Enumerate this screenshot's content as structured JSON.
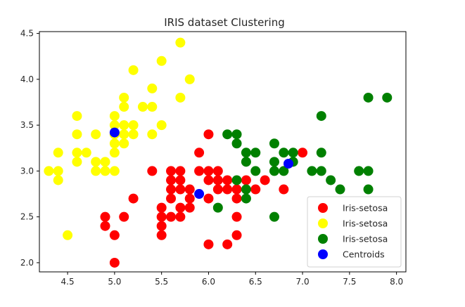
{
  "chart_data": {
    "type": "scatter",
    "title": "IRIS dataset Clustering",
    "xlabel": "",
    "ylabel": "",
    "xlim": [
      4.2,
      8.1
    ],
    "ylim": [
      1.9,
      4.52
    ],
    "xticks": [
      "4.5",
      "5.0",
      "5.5",
      "6.0",
      "6.5",
      "7.0",
      "7.5",
      "8.0"
    ],
    "yticks": [
      "2.0",
      "2.5",
      "3.0",
      "3.5",
      "4.0",
      "4.5"
    ],
    "grid": false,
    "legend_position": "bottom-right",
    "series": [
      {
        "name": "Iris-setosa",
        "color": "#ff0000",
        "points": [
          [
            5.0,
            2.0
          ],
          [
            4.9,
            2.5
          ],
          [
            4.9,
            2.4
          ],
          [
            5.0,
            2.3
          ],
          [
            5.1,
            2.5
          ],
          [
            5.2,
            2.7
          ],
          [
            5.4,
            3.0
          ],
          [
            5.5,
            2.6
          ],
          [
            5.5,
            2.5
          ],
          [
            5.5,
            2.4
          ],
          [
            5.5,
            2.3
          ],
          [
            5.6,
            3.0
          ],
          [
            5.6,
            2.9
          ],
          [
            5.6,
            2.8
          ],
          [
            5.6,
            2.7
          ],
          [
            5.6,
            2.5
          ],
          [
            5.7,
            3.0
          ],
          [
            5.7,
            2.9
          ],
          [
            5.7,
            2.8
          ],
          [
            5.7,
            2.6
          ],
          [
            5.7,
            2.5
          ],
          [
            5.8,
            2.8
          ],
          [
            5.8,
            2.7
          ],
          [
            5.8,
            2.6
          ],
          [
            5.9,
            3.2
          ],
          [
            5.9,
            3.0
          ],
          [
            6.0,
            3.4
          ],
          [
            6.0,
            3.0
          ],
          [
            6.0,
            2.9
          ],
          [
            6.0,
            2.7
          ],
          [
            6.0,
            2.2
          ],
          [
            6.1,
            3.0
          ],
          [
            6.1,
            2.9
          ],
          [
            6.1,
            2.8
          ],
          [
            6.2,
            2.9
          ],
          [
            6.2,
            2.8
          ],
          [
            6.2,
            2.2
          ],
          [
            6.3,
            2.8
          ],
          [
            6.3,
            2.7
          ],
          [
            6.3,
            2.5
          ],
          [
            6.3,
            2.3
          ],
          [
            6.4,
            2.9
          ],
          [
            6.5,
            2.8
          ],
          [
            6.6,
            2.9
          ],
          [
            6.8,
            2.8
          ],
          [
            7.0,
            3.2
          ]
        ]
      },
      {
        "name": "Iris-setosa",
        "color": "#ffff00",
        "points": [
          [
            4.3,
            3.0
          ],
          [
            4.4,
            3.2
          ],
          [
            4.4,
            3.0
          ],
          [
            4.4,
            2.9
          ],
          [
            4.5,
            2.3
          ],
          [
            4.6,
            3.6
          ],
          [
            4.6,
            3.4
          ],
          [
            4.6,
            3.2
          ],
          [
            4.6,
            3.1
          ],
          [
            4.7,
            3.2
          ],
          [
            4.8,
            3.4
          ],
          [
            4.8,
            3.1
          ],
          [
            4.8,
            3.0
          ],
          [
            4.9,
            3.1
          ],
          [
            4.9,
            3.0
          ],
          [
            5.0,
            3.6
          ],
          [
            5.0,
            3.5
          ],
          [
            5.0,
            3.4
          ],
          [
            5.0,
            3.3
          ],
          [
            5.0,
            3.2
          ],
          [
            5.0,
            3.0
          ],
          [
            5.1,
            3.8
          ],
          [
            5.1,
            3.7
          ],
          [
            5.1,
            3.5
          ],
          [
            5.1,
            3.4
          ],
          [
            5.1,
            3.3
          ],
          [
            5.2,
            4.1
          ],
          [
            5.2,
            3.5
          ],
          [
            5.2,
            3.4
          ],
          [
            5.3,
            3.7
          ],
          [
            5.4,
            3.9
          ],
          [
            5.4,
            3.7
          ],
          [
            5.4,
            3.4
          ],
          [
            5.5,
            4.2
          ],
          [
            5.5,
            3.5
          ],
          [
            5.7,
            4.4
          ],
          [
            5.7,
            3.8
          ],
          [
            5.8,
            4.0
          ]
        ]
      },
      {
        "name": "Iris-setosa",
        "color": "#008000",
        "points": [
          [
            6.1,
            2.6
          ],
          [
            6.2,
            3.4
          ],
          [
            6.3,
            3.4
          ],
          [
            6.3,
            3.3
          ],
          [
            6.3,
            2.9
          ],
          [
            6.4,
            3.2
          ],
          [
            6.4,
            3.1
          ],
          [
            6.4,
            2.8
          ],
          [
            6.4,
            2.7
          ],
          [
            6.5,
            3.2
          ],
          [
            6.5,
            3.0
          ],
          [
            6.7,
            3.3
          ],
          [
            6.7,
            3.1
          ],
          [
            6.7,
            3.0
          ],
          [
            6.7,
            2.5
          ],
          [
            6.8,
            3.2
          ],
          [
            6.8,
            3.0
          ],
          [
            6.9,
            3.2
          ],
          [
            6.9,
            3.1
          ],
          [
            7.1,
            3.0
          ],
          [
            7.2,
            3.6
          ],
          [
            7.2,
            3.2
          ],
          [
            7.2,
            3.0
          ],
          [
            7.3,
            2.9
          ],
          [
            7.4,
            2.8
          ],
          [
            7.6,
            3.0
          ],
          [
            7.7,
            3.8
          ],
          [
            7.7,
            3.0
          ],
          [
            7.7,
            2.8
          ],
          [
            7.9,
            3.8
          ]
        ]
      },
      {
        "name": "Centroids",
        "color": "#0000ff",
        "points": [
          [
            5.0,
            3.42
          ],
          [
            5.9,
            2.75
          ],
          [
            6.85,
            3.08
          ]
        ]
      }
    ]
  }
}
